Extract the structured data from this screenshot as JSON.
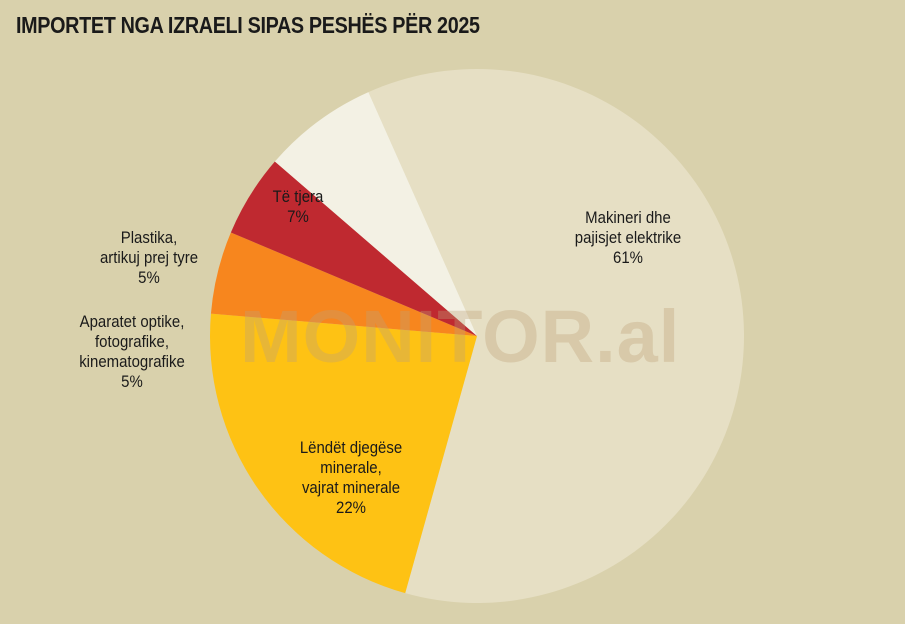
{
  "chart_data": {
    "type": "pie",
    "title": "IMPORTET NGA IZRAELI SIPAS PESHËS PËR 2025",
    "slices": [
      {
        "label_lines": [
          "Makineri dhe",
          "pajisjet elektrike"
        ],
        "value": 61,
        "value_label": "61%",
        "color": "#e6dfc4"
      },
      {
        "label_lines": [
          "Lëndët djegëse",
          "minerale,",
          "vajrat minerale"
        ],
        "value": 22,
        "value_label": "22%",
        "color": "#fec214"
      },
      {
        "label_lines": [
          "Aparatet optike,",
          "fotografike,",
          "kinematografike"
        ],
        "value": 5,
        "value_label": "5%",
        "color": "#f7861e"
      },
      {
        "label_lines": [
          "Plastika,",
          "artikuj prej tyre"
        ],
        "value": 5,
        "value_label": "5%",
        "color": "#bf2930"
      },
      {
        "label_lines": [
          "Të tjera"
        ],
        "value": 7,
        "value_label": "7%",
        "color": "#f3f1e4"
      }
    ]
  },
  "watermark": "MONITOR.al"
}
